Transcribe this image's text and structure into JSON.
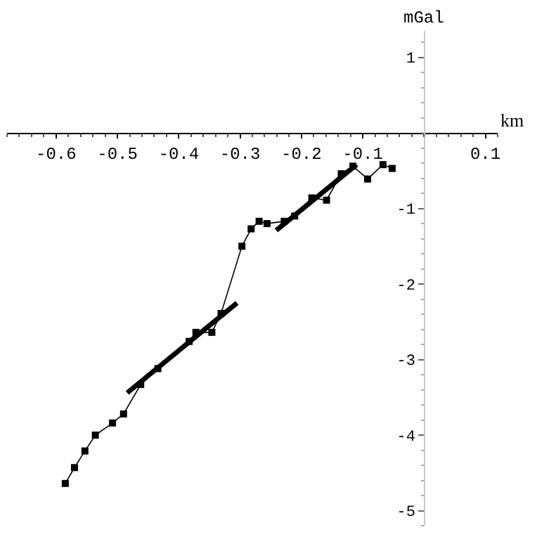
{
  "chart_data": {
    "type": "line",
    "xlabel": "km",
    "ylabel": "mGal",
    "xlim": [
      -0.68,
      0.12
    ],
    "ylim": [
      -5.2,
      1.35
    ],
    "xticks": [
      -0.6,
      -0.5,
      -0.4,
      -0.3,
      -0.2,
      -0.1,
      0.1
    ],
    "yticks": [
      1,
      -1,
      -2,
      -3,
      -4,
      -5
    ],
    "legend": false,
    "series": [
      {
        "color": "#000000",
        "marker": "square",
        "x": [
          -0.585,
          -0.57,
          -0.553,
          -0.536,
          -0.508,
          -0.49,
          -0.462,
          -0.434,
          -0.383,
          -0.372,
          -0.346,
          -0.331,
          -0.297,
          -0.282,
          -0.269,
          -0.256,
          -0.228,
          -0.211,
          -0.183,
          -0.159,
          -0.135,
          -0.116,
          -0.092,
          -0.067,
          -0.052
        ],
        "values": [
          -4.64,
          -4.43,
          -4.21,
          -4.0,
          -3.84,
          -3.72,
          -3.33,
          -3.12,
          -2.76,
          -2.64,
          -2.64,
          -2.39,
          -1.5,
          -1.27,
          -1.17,
          -1.2,
          -1.17,
          -1.1,
          -0.86,
          -0.89,
          -0.54,
          -0.44,
          -0.61,
          -0.42,
          -0.47
        ]
      },
      {
        "color": "#000000",
        "marker": "none",
        "x": [
          -0.484,
          -0.305
        ],
        "values": [
          -3.44,
          -2.25
        ]
      },
      {
        "color": "#000000",
        "marker": "none",
        "x": [
          -0.241,
          -0.11
        ],
        "values": [
          -1.29,
          -0.42
        ]
      }
    ]
  }
}
